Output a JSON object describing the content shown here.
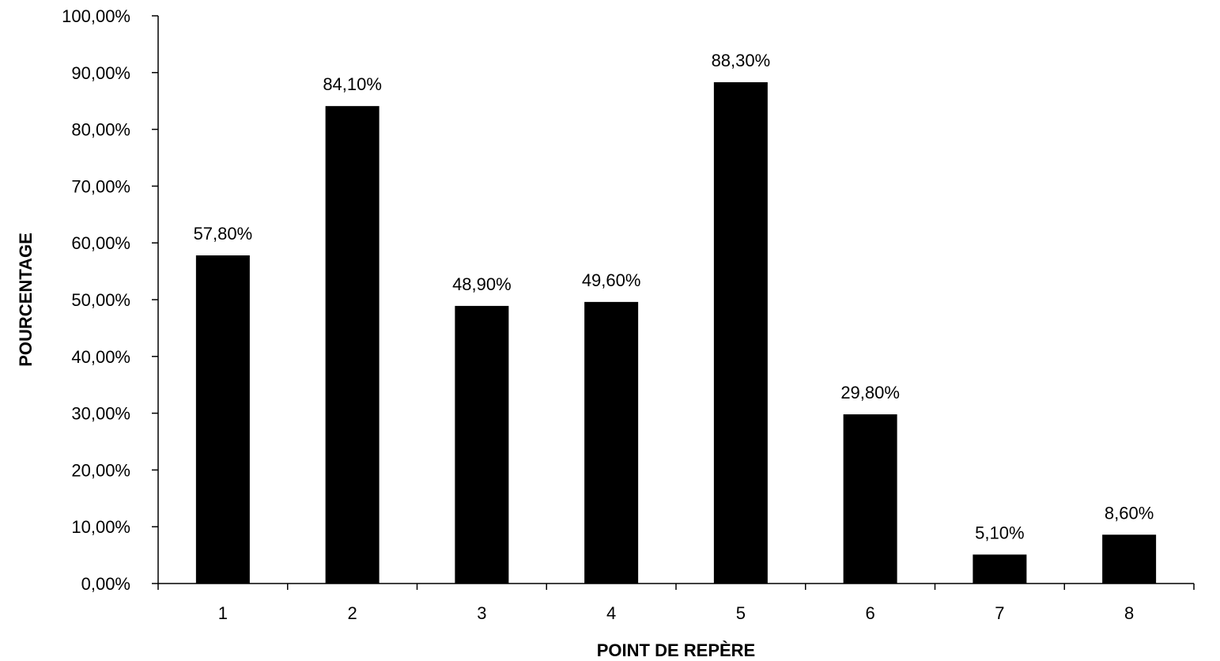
{
  "chart_data": {
    "type": "bar",
    "title": "",
    "xlabel": "POINT DE REPÈRE",
    "ylabel": "POURCENTAGE",
    "categories": [
      "1",
      "2",
      "3",
      "4",
      "5",
      "6",
      "7",
      "8"
    ],
    "values": [
      57.8,
      84.1,
      48.9,
      49.6,
      88.3,
      29.8,
      5.1,
      8.6
    ],
    "value_labels": [
      "57,80%",
      "84,10%",
      "48,90%",
      "49,60%",
      "88,30%",
      "29,80%",
      "5,10%",
      "8,60%"
    ],
    "ylim": [
      0,
      100
    ],
    "yticks": [
      0,
      10,
      20,
      30,
      40,
      50,
      60,
      70,
      80,
      90,
      100
    ],
    "ytick_labels": [
      "0,00%",
      "10,00%",
      "20,00%",
      "30,00%",
      "40,00%",
      "50,00%",
      "60,00%",
      "70,00%",
      "80,00%",
      "90,00%",
      "100,00%"
    ],
    "grid": false,
    "legend": "none",
    "bar_color": "#000000"
  }
}
